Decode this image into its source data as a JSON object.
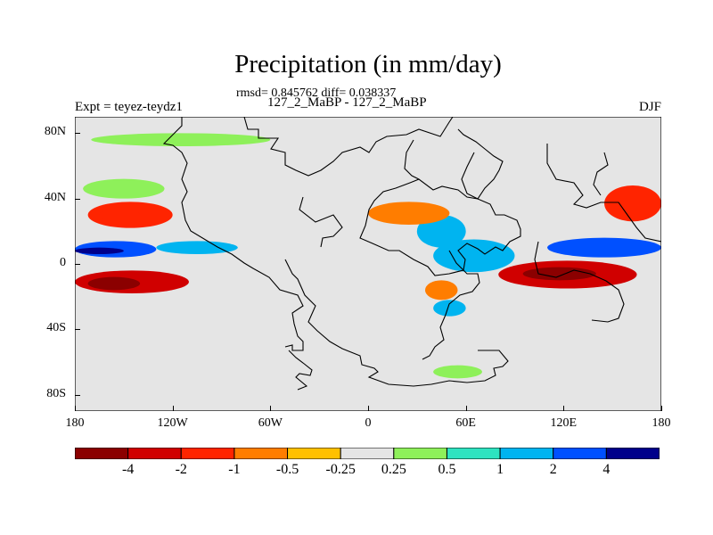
{
  "header": {
    "title": "Precipitation (in mm/day)",
    "stats": "rmsd= 0.845762 diff= 0.038337",
    "experiment": "127_2_MaBP - 127_2_MaBP",
    "left_string": "Expt = teyez-teydz1",
    "season": "DJF"
  },
  "chart_data": {
    "type": "heatmap",
    "title": "Precipitation (in mm/day)",
    "subtitle": "rmsd= 0.845762 diff= 0.038337",
    "variable": "precipitation difference (mm/day)",
    "xlabel": "",
    "ylabel": "",
    "xlim": [
      -180,
      180
    ],
    "ylim": [
      -90,
      90
    ],
    "x_ticks": [
      {
        "value": -180,
        "label": "180"
      },
      {
        "value": -120,
        "label": "120W"
      },
      {
        "value": -60,
        "label": "60W"
      },
      {
        "value": 0,
        "label": "0"
      },
      {
        "value": 60,
        "label": "60E"
      },
      {
        "value": 120,
        "label": "120E"
      },
      {
        "value": 180,
        "label": "180"
      }
    ],
    "y_ticks": [
      {
        "value": 80,
        "label": "80N"
      },
      {
        "value": 40,
        "label": "40N"
      },
      {
        "value": 0,
        "label": "0"
      },
      {
        "value": -40,
        "label": "40S"
      },
      {
        "value": -80,
        "label": "80S"
      }
    ],
    "levels": [
      -4,
      -2,
      -1,
      -0.5,
      -0.25,
      0.25,
      0.5,
      1,
      2,
      4
    ],
    "level_labels": [
      "-4",
      "-2",
      "-1",
      "-0.5",
      "-0.25",
      "0.25",
      "0.5",
      "1",
      "2",
      "4"
    ],
    "colors": [
      "#8b0000",
      "#d00000",
      "#ff2400",
      "#ff7d00",
      "#ffc000",
      "#e5e5e5",
      "#8ef05a",
      "#2ee3c0",
      "#00b4f0",
      "#0050ff",
      "#00008b"
    ],
    "legend": "bottom",
    "features": [
      {
        "name": "south-pacific-dry-band",
        "lon": [
          -180,
          -110
        ],
        "lat": [
          -18,
          -4
        ],
        "value": -3
      },
      {
        "name": "south-pacific-dry-core",
        "lon": [
          -172,
          -140
        ],
        "lat": [
          -16,
          -8
        ],
        "value": -5
      },
      {
        "name": "north-pacific-dry-band",
        "lon": [
          -172,
          -120
        ],
        "lat": [
          22,
          38
        ],
        "value": -1
      },
      {
        "name": "north-pacific-dry-core",
        "lon": [
          -165,
          -140
        ],
        "lat": [
          26,
          34
        ],
        "value": -1.5
      },
      {
        "name": "pacific-wet-band",
        "lon": [
          -180,
          -130
        ],
        "lat": [
          4,
          14
        ],
        "value": 3
      },
      {
        "name": "pacific-wet-core",
        "lon": [
          -180,
          -150
        ],
        "lat": [
          6,
          10
        ],
        "value": 5
      },
      {
        "name": "atlantic-wet-band",
        "lon": [
          -130,
          -80
        ],
        "lat": [
          6,
          14
        ],
        "value": 1.5
      },
      {
        "name": "north-pacific-wet-arc",
        "lon": [
          -175,
          -125
        ],
        "lat": [
          40,
          52
        ],
        "value": 0.4
      },
      {
        "name": "arctic-wet-strip",
        "lon": [
          -170,
          -60
        ],
        "lat": [
          72,
          80
        ],
        "value": 0.4
      },
      {
        "name": "indian-ocean-wet",
        "lon": [
          40,
          90
        ],
        "lat": [
          -5,
          15
        ],
        "value": 1.5
      },
      {
        "name": "arabian-wet",
        "lon": [
          30,
          60
        ],
        "lat": [
          10,
          30
        ],
        "value": 1.5
      },
      {
        "name": "mediterranean-dry",
        "lon": [
          0,
          50
        ],
        "lat": [
          24,
          38
        ],
        "value": -0.8
      },
      {
        "name": "maritime-continent-dry",
        "lon": [
          80,
          165
        ],
        "lat": [
          -15,
          2
        ],
        "value": -3
      },
      {
        "name": "maritime-continent-core",
        "lon": [
          95,
          140
        ],
        "lat": [
          -10,
          -2
        ],
        "value": -6
      },
      {
        "name": "west-pacific-wet-band",
        "lon": [
          110,
          180
        ],
        "lat": [
          4,
          16
        ],
        "value": 2.5
      },
      {
        "name": "west-pacific-dry-north",
        "lon": [
          145,
          180
        ],
        "lat": [
          26,
          48
        ],
        "value": -1.2
      },
      {
        "name": "africa-mixed-dry",
        "lon": [
          35,
          55
        ],
        "lat": [
          -22,
          -10
        ],
        "value": -0.8
      },
      {
        "name": "africa-mixed-wet",
        "lon": [
          40,
          60
        ],
        "lat": [
          -32,
          -22
        ],
        "value": 1.5
      },
      {
        "name": "southern-ocean-wet",
        "lon": [
          40,
          70
        ],
        "lat": [
          -70,
          -62
        ],
        "value": 0.4
      }
    ]
  }
}
